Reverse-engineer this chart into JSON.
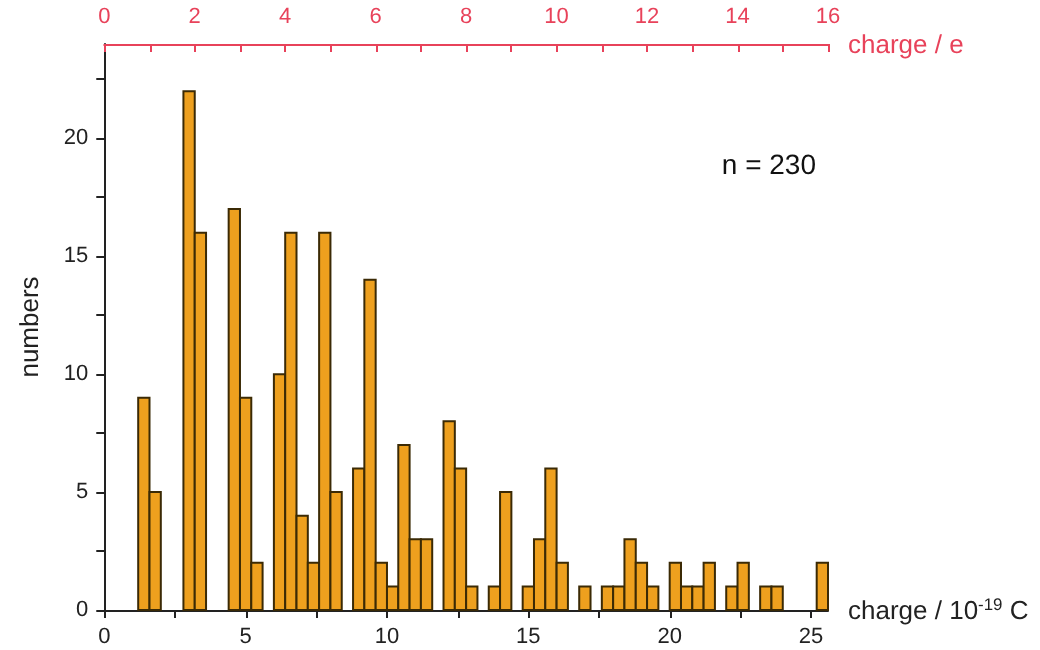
{
  "chart_data": {
    "type": "histogram",
    "xlabel": "charge / 10$^{-19}$ C",
    "ylabel": "numbers",
    "x2label": "charge / e",
    "annotations": [
      "n = 230"
    ],
    "bins": [
      1.2,
      1.6,
      2.0,
      2.4,
      2.8,
      3.2,
      3.6,
      4.0,
      4.4,
      4.8,
      5.2,
      5.6,
      6.0,
      6.4,
      6.8,
      7.2,
      7.6,
      8.0,
      8.4,
      8.8,
      9.2,
      9.6,
      10.0,
      10.4,
      10.8,
      11.2,
      11.6,
      12.0,
      12.4,
      12.8,
      13.2,
      13.6,
      14.0,
      14.4,
      14.8,
      15.2,
      15.6,
      16.0,
      16.4,
      16.8,
      17.2,
      17.6,
      18.0,
      18.4,
      18.8,
      19.2,
      19.6,
      20.0,
      20.4,
      20.8,
      21.2,
      21.6,
      22.0,
      22.4,
      22.8,
      23.2,
      23.6,
      24.0,
      24.4,
      24.8,
      25.2,
      25.6
    ],
    "values": [
      9,
      5,
      0,
      0,
      22,
      16,
      0,
      0,
      17,
      9,
      2,
      0,
      10,
      16,
      4,
      2,
      16,
      5,
      0,
      6,
      14,
      2,
      1,
      7,
      3,
      3,
      0,
      8,
      6,
      1,
      0,
      1,
      5,
      0,
      1,
      3,
      6,
      2,
      0,
      1,
      0,
      1,
      1,
      3,
      2,
      1,
      0,
      2,
      1,
      1,
      2,
      0,
      1,
      2,
      0,
      1,
      1,
      0,
      0,
      0,
      2
    ],
    "color": "#eea01e",
    "xlim": [
      0,
      25.6
    ],
    "xticks": [
      0,
      {
        "value": 2.5,
        "label": null
      },
      5,
      {
        "value": 7.5,
        "label": null
      },
      10,
      {
        "value": 12.5,
        "label": null
      },
      15,
      {
        "value": 17.5,
        "label": null
      },
      20,
      {
        "value": 22.5,
        "label": null
      },
      25
    ],
    "x2lim": [
      0,
      16
    ],
    "x2ticks": [
      0,
      {
        "value": 1,
        "label": null
      },
      2,
      {
        "value": 3,
        "label": null
      },
      4,
      {
        "value": 5,
        "label": null
      },
      6,
      {
        "value": 7,
        "label": null
      },
      8,
      {
        "value": 9,
        "label": null
      },
      10,
      {
        "value": 11,
        "label": null
      },
      12,
      {
        "value": 13,
        "label": null
      },
      14,
      {
        "value": 15,
        "label": null
      },
      16
    ],
    "ylim": [
      0,
      24
    ],
    "yticks": [
      0,
      {
        "value": 2.5,
        "label": null
      },
      5,
      {
        "value": 7.5,
        "label": null
      },
      10,
      {
        "value": 12.5,
        "label": null
      },
      15,
      {
        "value": 17.5,
        "label": null
      },
      20,
      {
        "value": 22.5,
        "label": null
      }
    ],
    "grid": false
  }
}
